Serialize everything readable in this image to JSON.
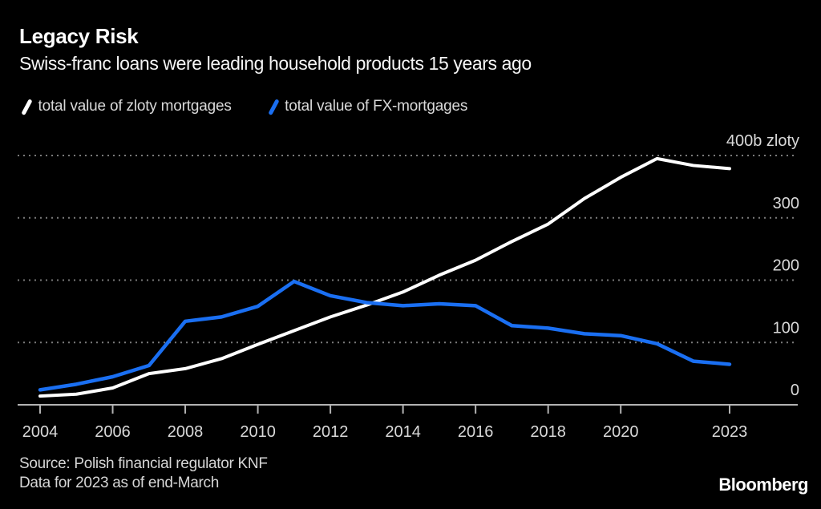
{
  "header": {
    "title": "Legacy Risk",
    "subtitle": "Swiss-franc loans were leading household products 15 years ago"
  },
  "legend": {
    "items": [
      {
        "label": "total value of zloty mortgages",
        "color": "#ffffff"
      },
      {
        "label": "total value of FX-mortgages",
        "color": "#1a6ff2"
      }
    ]
  },
  "footer": {
    "source_line1": "Source: Polish financial regulator KNF",
    "source_line2": "Data for 2023 as of end-March",
    "logo": "Bloomberg"
  },
  "chart_data": {
    "type": "line",
    "x": [
      2004,
      2005,
      2006,
      2007,
      2008,
      2009,
      2010,
      2011,
      2012,
      2013,
      2014,
      2015,
      2016,
      2017,
      2018,
      2019,
      2020,
      2021,
      2022,
      2023
    ],
    "series": [
      {
        "id": "zloty",
        "name": "total value of zloty mortgages",
        "color": "#ffffff",
        "width": 4,
        "values": [
          14,
          17,
          27,
          50,
          58,
          74,
          97,
          119,
          141,
          160,
          181,
          208,
          232,
          262,
          290,
          331,
          365,
          395,
          384,
          379
        ]
      },
      {
        "id": "fx",
        "name": "total value of FX-mortgages",
        "color": "#1a6ff2",
        "width": 4.5,
        "values": [
          24,
          33,
          45,
          63,
          134,
          141,
          158,
          198,
          175,
          164,
          159,
          162,
          159,
          127,
          123,
          114,
          111,
          98,
          70,
          65
        ]
      }
    ],
    "xlim": [
      2004,
      2023
    ],
    "ylim": [
      0,
      400
    ],
    "x_ticks": [
      2004,
      2006,
      2008,
      2010,
      2012,
      2014,
      2016,
      2018,
      2020,
      2023
    ],
    "y_ticks": [
      {
        "value": 400,
        "label": "400b zloty"
      },
      {
        "value": 300,
        "label": "300"
      },
      {
        "value": 200,
        "label": "200"
      },
      {
        "value": 100,
        "label": "100"
      },
      {
        "value": 0,
        "label": "0"
      }
    ],
    "grid": "dotted-horizontal",
    "legend_position": "top-left",
    "title": "Legacy Risk",
    "subtitle": "Swiss-franc loans were leading household products 15 years ago",
    "xlabel": "",
    "ylabel": "b zloty"
  }
}
